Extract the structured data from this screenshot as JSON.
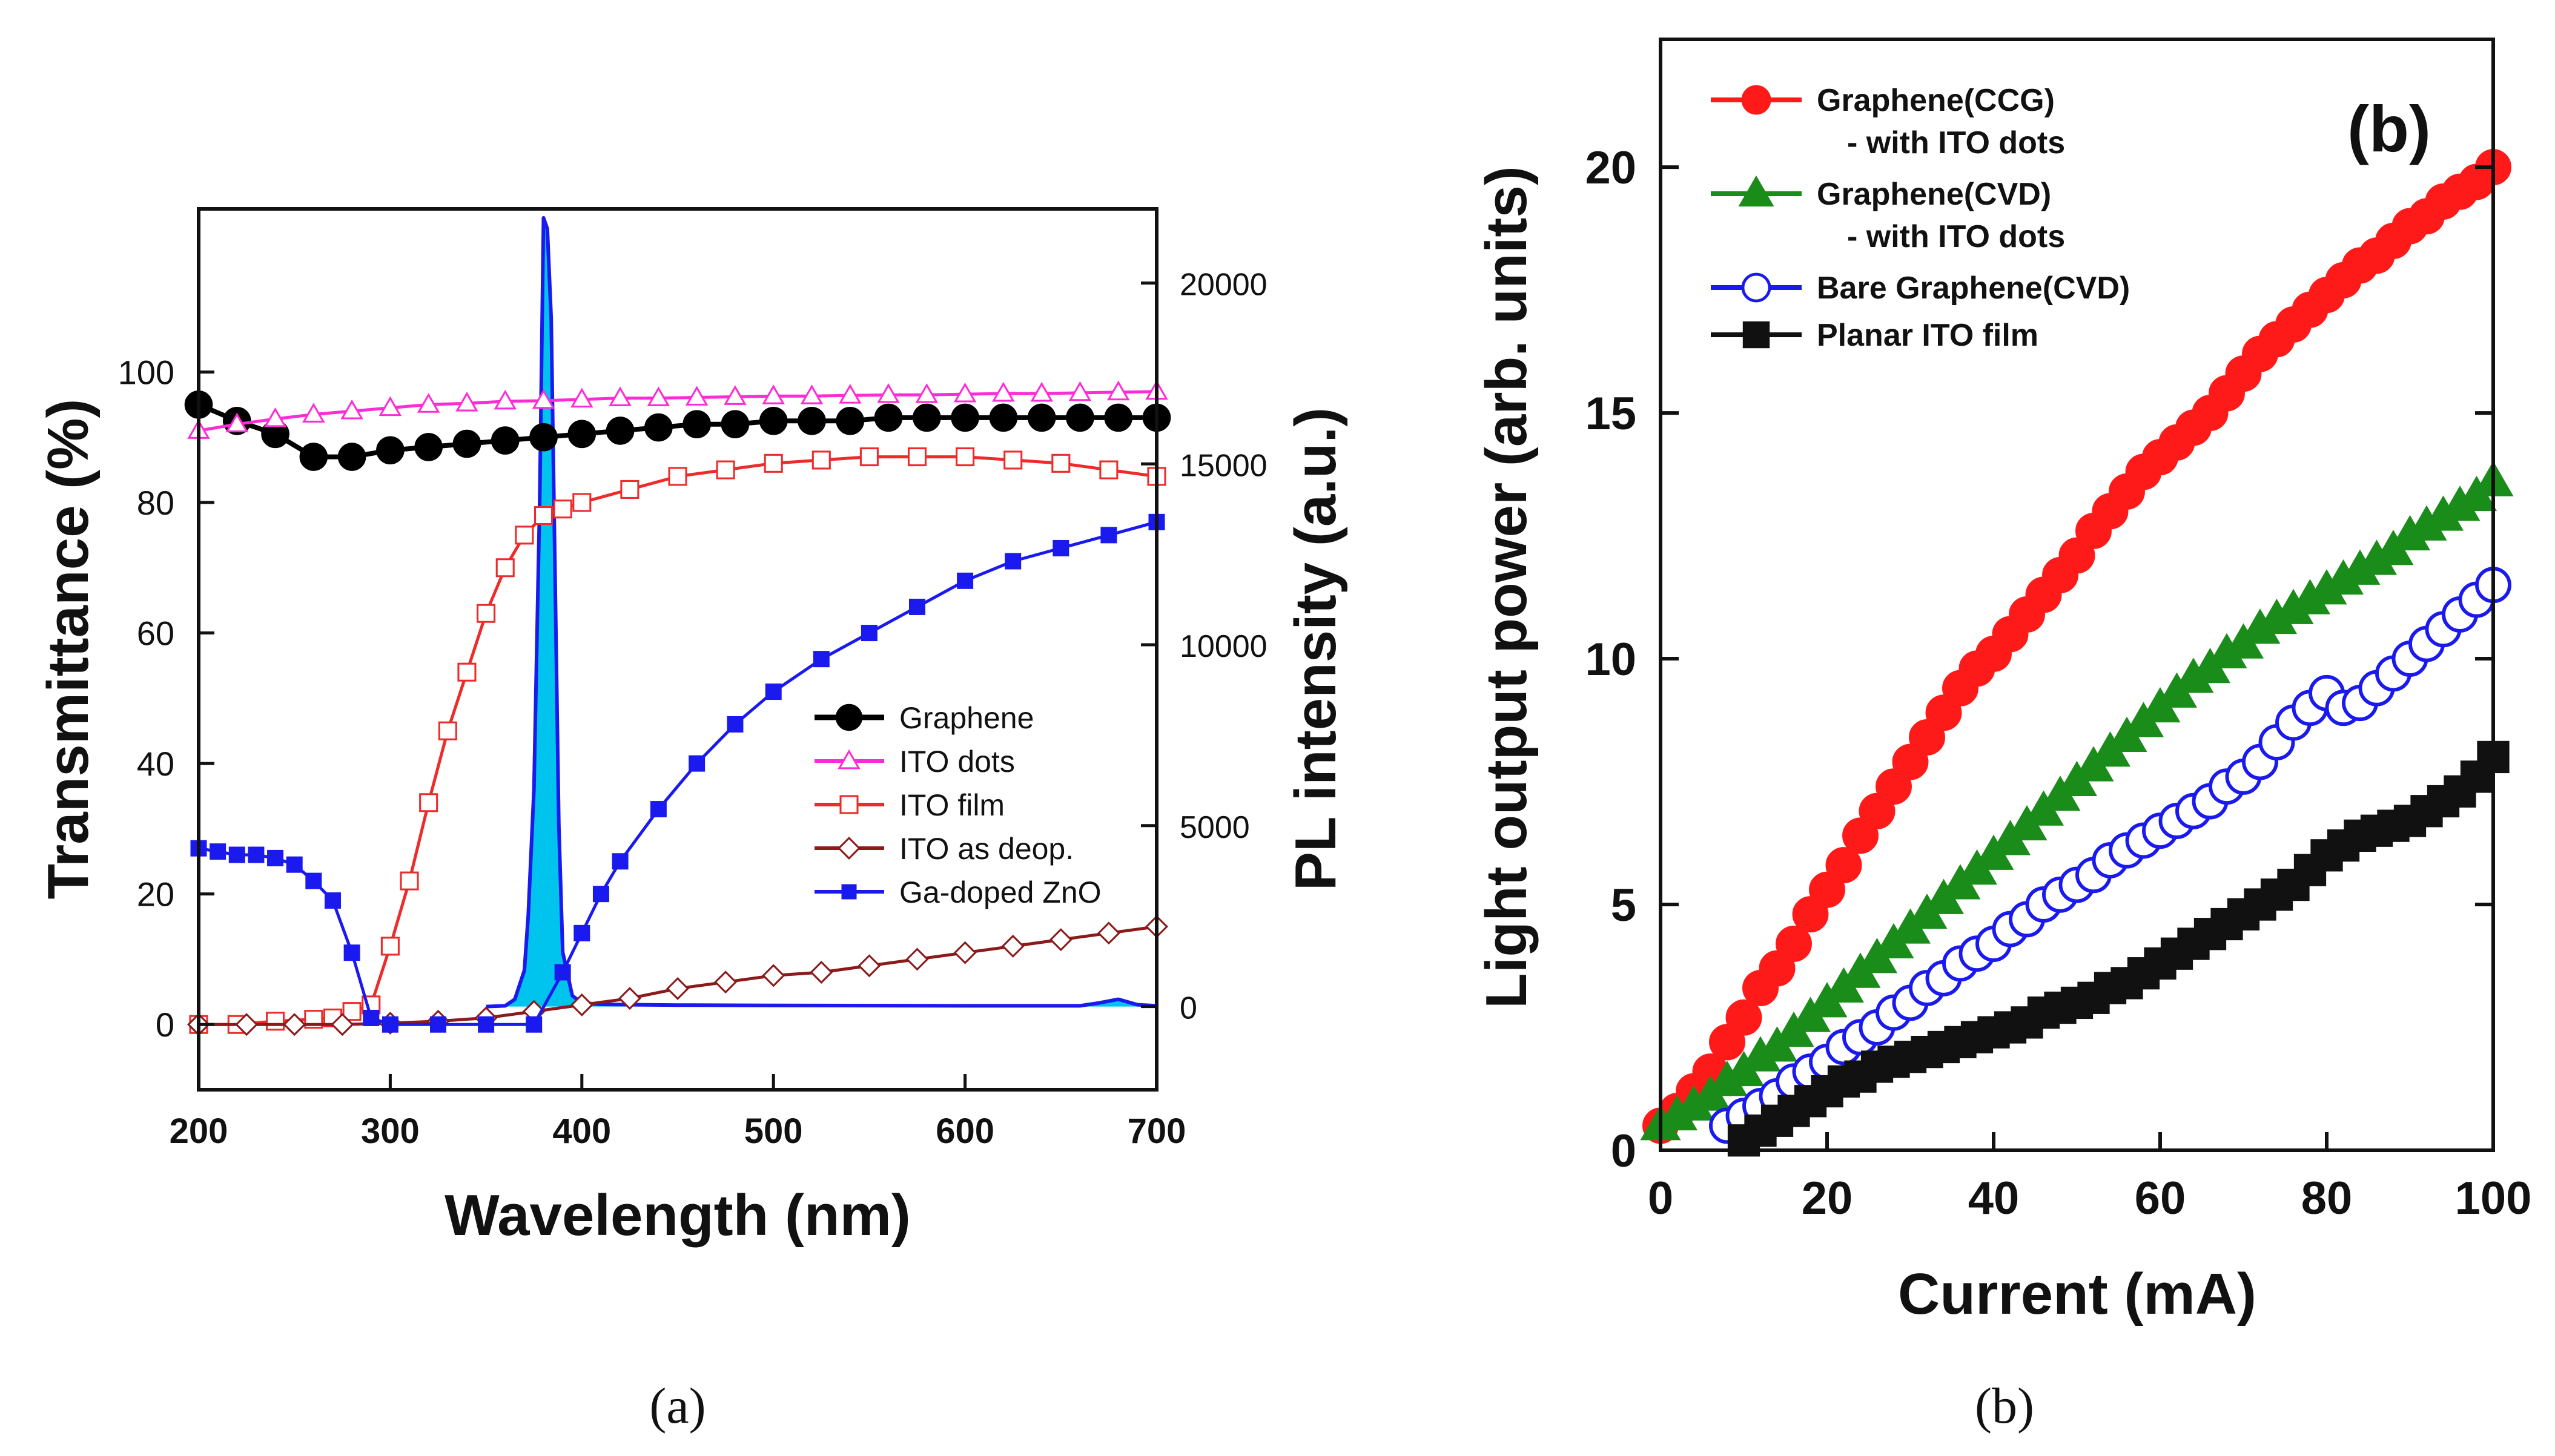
{
  "chart_data": [
    {
      "type": "line",
      "panel": "a",
      "caption": "(a)",
      "xlabel": "Wavelength (nm)",
      "ylabel": "Transmittance (%)",
      "y2label": "PL intensity (a.u.)",
      "xlim": [
        200,
        700
      ],
      "ylim": [
        -10,
        125
      ],
      "y2lim": [
        -2300,
        22050
      ],
      "xticks": [
        200,
        300,
        400,
        500,
        600,
        700
      ],
      "yticks": [
        0,
        20,
        40,
        60,
        80,
        100
      ],
      "y2ticks": [
        0,
        5000,
        10000,
        15000,
        20000
      ],
      "legend_position": "center-right",
      "series": [
        {
          "name": "Graphene",
          "color": "#000000",
          "marker": "filled-circle",
          "x": [
            200,
            220,
            240,
            260,
            280,
            300,
            320,
            340,
            360,
            380,
            400,
            420,
            440,
            460,
            480,
            500,
            520,
            540,
            560,
            580,
            600,
            620,
            640,
            660,
            680,
            700
          ],
          "y": [
            95,
            92.5,
            90.5,
            87,
            87,
            88,
            88.5,
            89,
            89.5,
            90,
            90.5,
            91,
            91.5,
            92,
            92,
            92.5,
            92.5,
            92.5,
            93,
            93,
            93,
            93,
            93,
            93,
            93,
            93
          ]
        },
        {
          "name": "ITO dots",
          "color": "#ff2bd6",
          "marker": "open-triangle",
          "x": [
            200,
            220,
            240,
            260,
            280,
            300,
            320,
            340,
            360,
            380,
            400,
            420,
            440,
            460,
            480,
            500,
            520,
            540,
            560,
            580,
            600,
            620,
            640,
            660,
            680,
            700
          ],
          "y": [
            91,
            92,
            92.8,
            93.5,
            94,
            94.5,
            95,
            95.2,
            95.5,
            95.6,
            95.8,
            96,
            96,
            96.1,
            96.2,
            96.3,
            96.3,
            96.4,
            96.5,
            96.5,
            96.6,
            96.7,
            96.7,
            96.8,
            96.9,
            97
          ]
        },
        {
          "name": "ITO film",
          "color": "#ee2b2b",
          "marker": "open-square",
          "x": [
            200,
            220,
            240,
            260,
            270,
            280,
            290,
            300,
            310,
            320,
            330,
            340,
            350,
            360,
            370,
            380,
            390,
            400,
            425,
            450,
            475,
            500,
            525,
            550,
            575,
            600,
            625,
            650,
            675,
            700
          ],
          "y": [
            0,
            0,
            0.5,
            0.8,
            1,
            2,
            3,
            12,
            22,
            34,
            45,
            54,
            63,
            70,
            75,
            78,
            79,
            80,
            82,
            84,
            85,
            86,
            86.5,
            87,
            87,
            87,
            86.5,
            86,
            85,
            84
          ]
        },
        {
          "name": "ITO as deop.",
          "color": "#8b1a1a",
          "marker": "open-diamond",
          "x": [
            200,
            225,
            250,
            275,
            300,
            325,
            350,
            375,
            400,
            425,
            450,
            475,
            500,
            525,
            550,
            575,
            600,
            625,
            650,
            675,
            700
          ],
          "y": [
            0,
            0,
            0,
            0,
            0.2,
            0.5,
            1,
            2,
            3,
            4,
            5.5,
            6.5,
            7.5,
            8,
            9,
            10,
            11,
            12,
            13,
            14,
            15
          ]
        },
        {
          "name": "Ga-doped ZnO",
          "color": "#1a1aee",
          "marker": "filled-square",
          "x": [
            200,
            210,
            220,
            230,
            240,
            250,
            260,
            270,
            280,
            290,
            300,
            325,
            350,
            375,
            390,
            400,
            410,
            420,
            440,
            460,
            480,
            500,
            525,
            550,
            575,
            600,
            625,
            650,
            675,
            700
          ],
          "y": [
            27,
            26.5,
            26,
            26,
            25.5,
            24.5,
            22,
            19,
            11,
            1,
            0,
            0,
            0,
            0,
            8,
            14,
            20,
            25,
            33,
            40,
            46,
            51,
            56,
            60,
            64,
            68,
            71,
            73,
            75,
            77
          ]
        },
        {
          "name": "PL intensity",
          "color": "#1a1aee",
          "fill": "#00c4ee",
          "axis": "right",
          "x": [
            350,
            360,
            365,
            370,
            372,
            375,
            378,
            380,
            382,
            384,
            386,
            388,
            390,
            395,
            400,
            410,
            450,
            500,
            600,
            660,
            670,
            680,
            690,
            700
          ],
          "y": [
            0,
            20,
            200,
            1000,
            2500,
            6000,
            14000,
            21800,
            21500,
            19000,
            12000,
            5000,
            1500,
            300,
            100,
            60,
            40,
            30,
            20,
            20,
            100,
            200,
            50,
            20
          ]
        }
      ]
    },
    {
      "type": "scatter",
      "panel": "b",
      "panel_label": "(b)",
      "caption": "(b)",
      "xlabel": "Current (mA)",
      "ylabel": "Light output power (arb. units)",
      "xlim": [
        0,
        100
      ],
      "ylim": [
        0,
        22.6
      ],
      "xticks": [
        0,
        20,
        40,
        60,
        80,
        100
      ],
      "yticks": [
        0,
        5,
        10,
        15,
        20
      ],
      "legend_position": "top-left",
      "series": [
        {
          "name": "Graphene(CCG)",
          "legend_line2": "- with ITO dots",
          "color": "#ff1a1a",
          "marker": "filled-circle",
          "x": [
            0,
            2,
            4,
            6,
            8,
            10,
            12,
            14,
            16,
            18,
            20,
            22,
            24,
            26,
            28,
            30,
            32,
            34,
            36,
            38,
            40,
            42,
            44,
            46,
            48,
            50,
            52,
            54,
            56,
            58,
            60,
            62,
            64,
            66,
            68,
            70,
            72,
            74,
            76,
            78,
            80,
            82,
            84,
            86,
            88,
            90,
            92,
            94,
            96,
            98,
            100
          ],
          "y": [
            0.5,
            0.8,
            1.2,
            1.6,
            2.2,
            2.7,
            3.3,
            3.7,
            4.2,
            4.8,
            5.3,
            5.8,
            6.4,
            6.9,
            7.4,
            7.9,
            8.4,
            8.9,
            9.4,
            9.8,
            10.1,
            10.5,
            10.9,
            11.3,
            11.7,
            12.1,
            12.6,
            13.0,
            13.4,
            13.8,
            14.1,
            14.4,
            14.7,
            15.0,
            15.4,
            15.8,
            16.2,
            16.5,
            16.8,
            17.1,
            17.4,
            17.7,
            18.0,
            18.2,
            18.5,
            18.8,
            19.0,
            19.3,
            19.5,
            19.7,
            20.0
          ]
        },
        {
          "name": "Graphene(CVD)",
          "legend_line2": "- with ITO dots",
          "color": "#1a8c1a",
          "marker": "filled-triangle",
          "x": [
            0,
            2,
            4,
            6,
            8,
            10,
            12,
            14,
            16,
            18,
            20,
            22,
            24,
            26,
            28,
            30,
            32,
            34,
            36,
            38,
            40,
            42,
            44,
            46,
            48,
            50,
            52,
            54,
            56,
            58,
            60,
            62,
            64,
            66,
            68,
            70,
            72,
            74,
            76,
            78,
            80,
            82,
            84,
            86,
            88,
            90,
            92,
            94,
            96,
            98,
            100
          ],
          "y": [
            0.5,
            0.7,
            0.9,
            1.1,
            1.4,
            1.6,
            1.9,
            2.1,
            2.4,
            2.7,
            3.0,
            3.3,
            3.6,
            3.9,
            4.2,
            4.5,
            4.8,
            5.1,
            5.4,
            5.7,
            6.0,
            6.3,
            6.6,
            6.9,
            7.2,
            7.5,
            7.8,
            8.1,
            8.4,
            8.7,
            9.0,
            9.3,
            9.6,
            9.8,
            10.1,
            10.3,
            10.6,
            10.8,
            11.0,
            11.2,
            11.4,
            11.6,
            11.8,
            12.0,
            12.2,
            12.5,
            12.7,
            12.9,
            13.1,
            13.3,
            13.6
          ]
        },
        {
          "name": "Bare Graphene(CVD)",
          "color": "#1a1aee",
          "marker": "open-circle",
          "x": [
            8,
            10,
            12,
            14,
            16,
            18,
            20,
            22,
            24,
            26,
            28,
            30,
            32,
            34,
            36,
            38,
            40,
            42,
            44,
            46,
            48,
            50,
            52,
            54,
            56,
            58,
            60,
            62,
            64,
            66,
            68,
            70,
            72,
            74,
            76,
            78,
            80,
            82,
            84,
            86,
            88,
            90,
            92,
            94,
            96,
            98,
            100
          ],
          "y": [
            0.5,
            0.7,
            0.9,
            1.1,
            1.4,
            1.6,
            1.8,
            2.1,
            2.3,
            2.5,
            2.8,
            3.0,
            3.3,
            3.5,
            3.8,
            4.0,
            4.2,
            4.5,
            4.7,
            5.0,
            5.2,
            5.4,
            5.6,
            5.9,
            6.1,
            6.3,
            6.5,
            6.7,
            6.9,
            7.1,
            7.4,
            7.6,
            7.9,
            8.3,
            8.7,
            9.0,
            9.3,
            9.0,
            9.1,
            9.4,
            9.7,
            10.0,
            10.3,
            10.6,
            10.9,
            11.2,
            11.5
          ]
        },
        {
          "name": "Planar ITO film",
          "color": "#111111",
          "marker": "filled-square",
          "x": [
            10,
            12,
            14,
            16,
            18,
            20,
            22,
            24,
            26,
            28,
            30,
            32,
            34,
            36,
            38,
            40,
            42,
            44,
            46,
            48,
            50,
            52,
            54,
            56,
            58,
            60,
            62,
            64,
            66,
            68,
            70,
            72,
            74,
            76,
            78,
            80,
            82,
            84,
            86,
            88,
            90,
            92,
            94,
            96,
            98,
            100
          ],
          "y": [
            0.2,
            0.4,
            0.6,
            0.8,
            1.0,
            1.2,
            1.4,
            1.5,
            1.7,
            1.8,
            1.9,
            2.0,
            2.1,
            2.2,
            2.3,
            2.4,
            2.5,
            2.6,
            2.8,
            2.9,
            3.0,
            3.1,
            3.3,
            3.4,
            3.6,
            3.8,
            4.0,
            4.2,
            4.4,
            4.6,
            4.8,
            5.0,
            5.2,
            5.4,
            5.7,
            6.0,
            6.2,
            6.4,
            6.5,
            6.6,
            6.7,
            6.9,
            7.1,
            7.3,
            7.6,
            8.0
          ]
        }
      ]
    }
  ]
}
